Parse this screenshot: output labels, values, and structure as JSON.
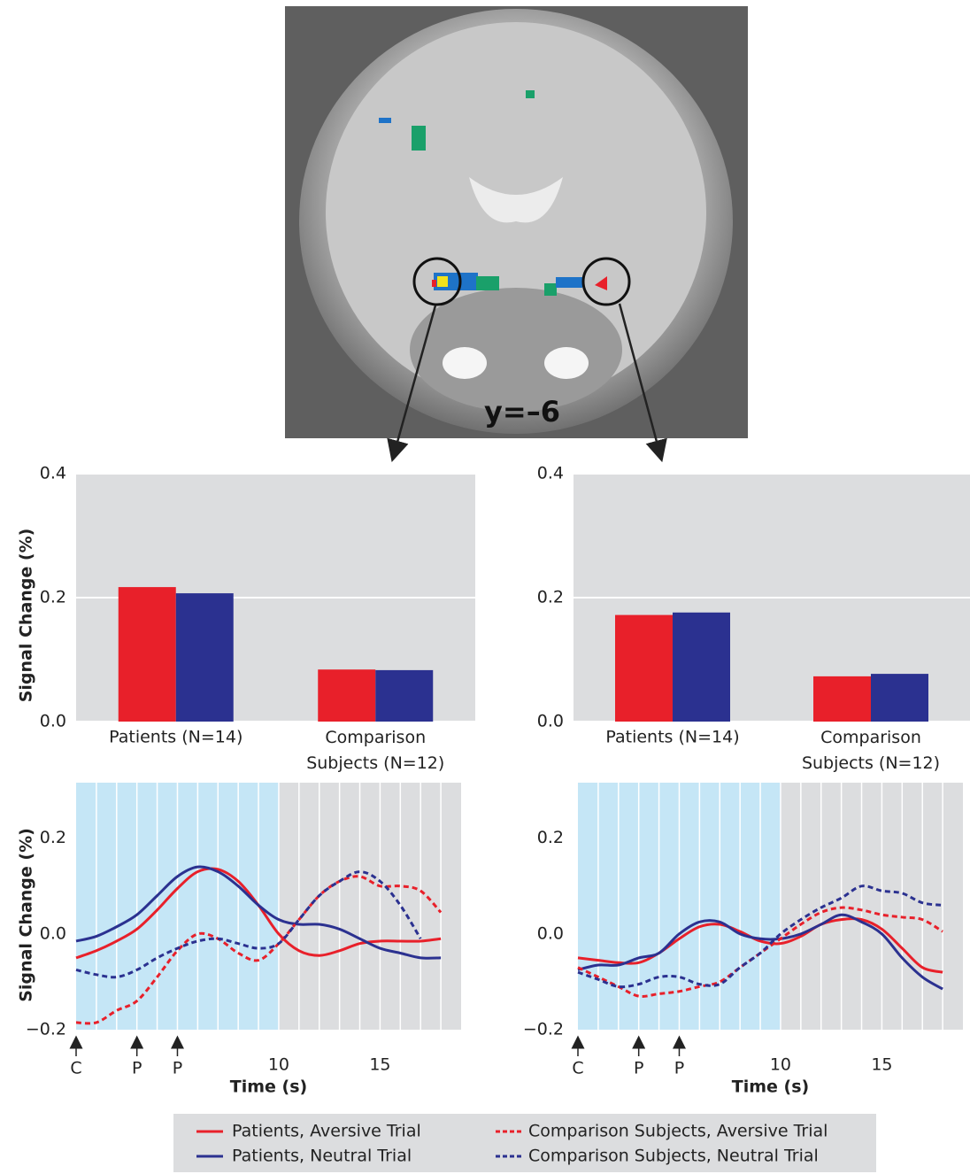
{
  "image": {
    "label": "y=–6"
  },
  "chart_data": [
    {
      "type": "bar",
      "ylabel": "Signal Change (%)",
      "categories": [
        "Patients (N=14)",
        "Comparison Subjects (N=12)"
      ],
      "series": [
        {
          "color": "#e8202a",
          "values": [
            0.217,
            0.084
          ]
        },
        {
          "color": "#2b3190",
          "values": [
            0.207,
            0.083
          ]
        }
      ],
      "ylim": [
        0,
        0.4
      ],
      "yticks": [
        {
          "value": 0,
          "label": "0.0"
        },
        0.2,
        0.4
      ],
      "grid": true
    },
    {
      "type": "bar",
      "categories": [
        "Patients (N=14)",
        "Comparison Subjects (N=12)"
      ],
      "series": [
        {
          "color": "#e8202a",
          "values": [
            0.172,
            0.073
          ]
        },
        {
          "color": "#2b3190",
          "values": [
            0.176,
            0.077
          ]
        }
      ],
      "ylim": [
        0,
        0.4
      ],
      "yticks": [
        {
          "value": 0,
          "label": "0.0"
        },
        0.2,
        0.4
      ],
      "grid": true
    },
    {
      "type": "line",
      "ylabel": "Signal Change (%)",
      "xlabel": "Time (s)",
      "x": [
        0,
        1,
        2,
        3,
        4,
        5,
        6,
        7,
        8,
        9,
        10,
        11,
        12,
        13,
        14,
        15,
        16,
        17,
        18
      ],
      "xlim": [
        0,
        19
      ],
      "xticks": [
        10,
        15
      ],
      "ylim": [
        -0.2,
        0.316
      ],
      "yticks": [
        {
          "value": -0.2,
          "label": "−0.2"
        },
        {
          "value": 0,
          "label": "0.0"
        },
        0.2
      ],
      "shade": [
        0,
        10
      ],
      "grid": true,
      "events": [
        {
          "x": 0,
          "label": "C"
        },
        {
          "x": 3,
          "label": "P"
        },
        {
          "x": 5,
          "label": "P"
        }
      ],
      "series": [
        {
          "name": "Patients, Aversive Trial",
          "color": "#e8202a",
          "dashed": false,
          "values": [
            -0.05,
            -0.035,
            -0.015,
            0.01,
            0.05,
            0.095,
            0.13,
            0.135,
            0.11,
            0.06,
            0.0,
            -0.035,
            -0.045,
            -0.035,
            -0.02,
            -0.015,
            -0.015,
            -0.015,
            -0.01
          ]
        },
        {
          "name": "Patients, Neutral Trial",
          "color": "#2b3190",
          "dashed": false,
          "values": [
            -0.015,
            -0.005,
            0.015,
            0.04,
            0.08,
            0.12,
            0.14,
            0.13,
            0.1,
            0.06,
            0.03,
            0.02,
            0.02,
            0.01,
            -0.01,
            -0.03,
            -0.04,
            -0.05,
            -0.05
          ]
        },
        {
          "name": "Comparison Subjects, Aversive Trial",
          "color": "#e8202a",
          "dashed": true,
          "values": [
            -0.185,
            -0.185,
            -0.16,
            -0.14,
            -0.09,
            -0.035,
            0.0,
            -0.01,
            -0.04,
            -0.055,
            -0.02,
            0.03,
            0.08,
            0.11,
            0.12,
            0.1,
            0.1,
            0.09,
            0.045
          ]
        },
        {
          "name": "Comparison Subjects, Neutral Trial",
          "color": "#2b3190",
          "dashed": true,
          "values": [
            -0.075,
            -0.085,
            -0.09,
            -0.075,
            -0.05,
            -0.03,
            -0.015,
            -0.01,
            -0.02,
            -0.03,
            -0.02,
            0.03,
            0.08,
            0.11,
            0.13,
            0.11,
            0.06,
            -0.01,
            null
          ]
        }
      ]
    },
    {
      "type": "line",
      "xlabel": "Time (s)",
      "x": [
        0,
        1,
        2,
        3,
        4,
        5,
        6,
        7,
        8,
        9,
        10,
        11,
        12,
        13,
        14,
        15,
        16,
        17,
        18
      ],
      "xlim": [
        0,
        19
      ],
      "xticks": [
        10,
        15
      ],
      "ylim": [
        -0.2,
        0.316
      ],
      "yticks": [
        {
          "value": -0.2,
          "label": "−0.2"
        },
        {
          "value": 0,
          "label": "0.0"
        },
        0.2
      ],
      "shade": [
        0,
        10
      ],
      "grid": true,
      "events": [
        {
          "x": 0,
          "label": "C"
        },
        {
          "x": 3,
          "label": "P"
        },
        {
          "x": 5,
          "label": "P"
        }
      ],
      "series": [
        {
          "color": "#e8202a",
          "dashed": false,
          "values": [
            -0.05,
            -0.055,
            -0.06,
            -0.06,
            -0.04,
            -0.01,
            0.015,
            0.02,
            0.005,
            -0.015,
            -0.02,
            -0.005,
            0.02,
            0.03,
            0.03,
            0.01,
            -0.03,
            -0.07,
            -0.08
          ]
        },
        {
          "color": "#2b3190",
          "dashed": false,
          "values": [
            -0.075,
            -0.065,
            -0.065,
            -0.05,
            -0.04,
            0.0,
            0.025,
            0.025,
            0.0,
            -0.01,
            -0.01,
            0.0,
            0.02,
            0.04,
            0.025,
            0.0,
            -0.05,
            -0.09,
            -0.115
          ]
        },
        {
          "color": "#e8202a",
          "dashed": true,
          "values": [
            -0.07,
            -0.09,
            -0.11,
            -0.13,
            -0.125,
            -0.12,
            -0.11,
            -0.1,
            -0.07,
            -0.04,
            -0.01,
            0.02,
            0.045,
            0.055,
            0.05,
            0.04,
            0.035,
            0.03,
            0.005
          ]
        },
        {
          "color": "#2b3190",
          "dashed": true,
          "values": [
            -0.08,
            -0.095,
            -0.11,
            -0.105,
            -0.09,
            -0.09,
            -0.105,
            -0.105,
            -0.07,
            -0.04,
            0.0,
            0.03,
            0.055,
            0.075,
            0.1,
            0.09,
            0.085,
            0.065,
            0.06
          ]
        }
      ]
    }
  ]
}
